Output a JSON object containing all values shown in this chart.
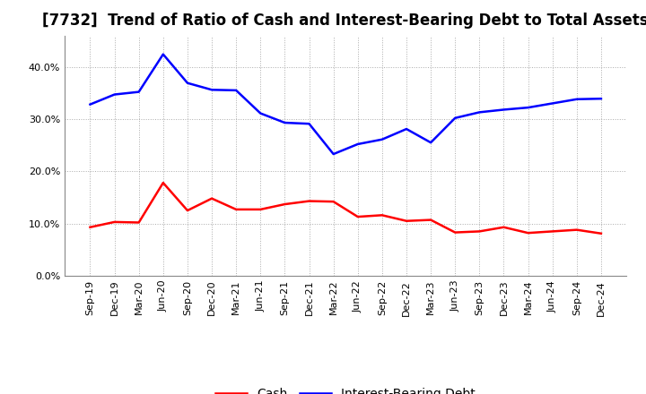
{
  "title": "[7732]  Trend of Ratio of Cash and Interest-Bearing Debt to Total Assets",
  "x_labels": [
    "Sep-19",
    "Dec-19",
    "Mar-20",
    "Jun-20",
    "Sep-20",
    "Dec-20",
    "Mar-21",
    "Jun-21",
    "Sep-21",
    "Dec-21",
    "Mar-22",
    "Jun-22",
    "Sep-22",
    "Dec-22",
    "Mar-23",
    "Jun-23",
    "Sep-23",
    "Dec-23",
    "Mar-24",
    "Jun-24",
    "Sep-24",
    "Dec-24"
  ],
  "cash": [
    0.093,
    0.103,
    0.102,
    0.178,
    0.125,
    0.148,
    0.127,
    0.127,
    0.137,
    0.143,
    0.142,
    0.113,
    0.116,
    0.105,
    0.107,
    0.083,
    0.085,
    0.093,
    0.082,
    0.085,
    0.088,
    0.081
  ],
  "interest_bearing_debt": [
    0.328,
    0.347,
    0.352,
    0.424,
    0.369,
    0.356,
    0.355,
    0.311,
    0.293,
    0.291,
    0.233,
    0.252,
    0.261,
    0.281,
    0.255,
    0.302,
    0.313,
    0.318,
    0.322,
    0.33,
    0.338,
    0.339
  ],
  "cash_color": "#ff0000",
  "debt_color": "#0000ff",
  "ylim": [
    0.0,
    0.46
  ],
  "yticks": [
    0.0,
    0.1,
    0.2,
    0.3,
    0.4
  ],
  "background_color": "#ffffff",
  "grid_color": "#aaaaaa",
  "title_fontsize": 12,
  "tick_fontsize": 8,
  "legend_fontsize": 10
}
